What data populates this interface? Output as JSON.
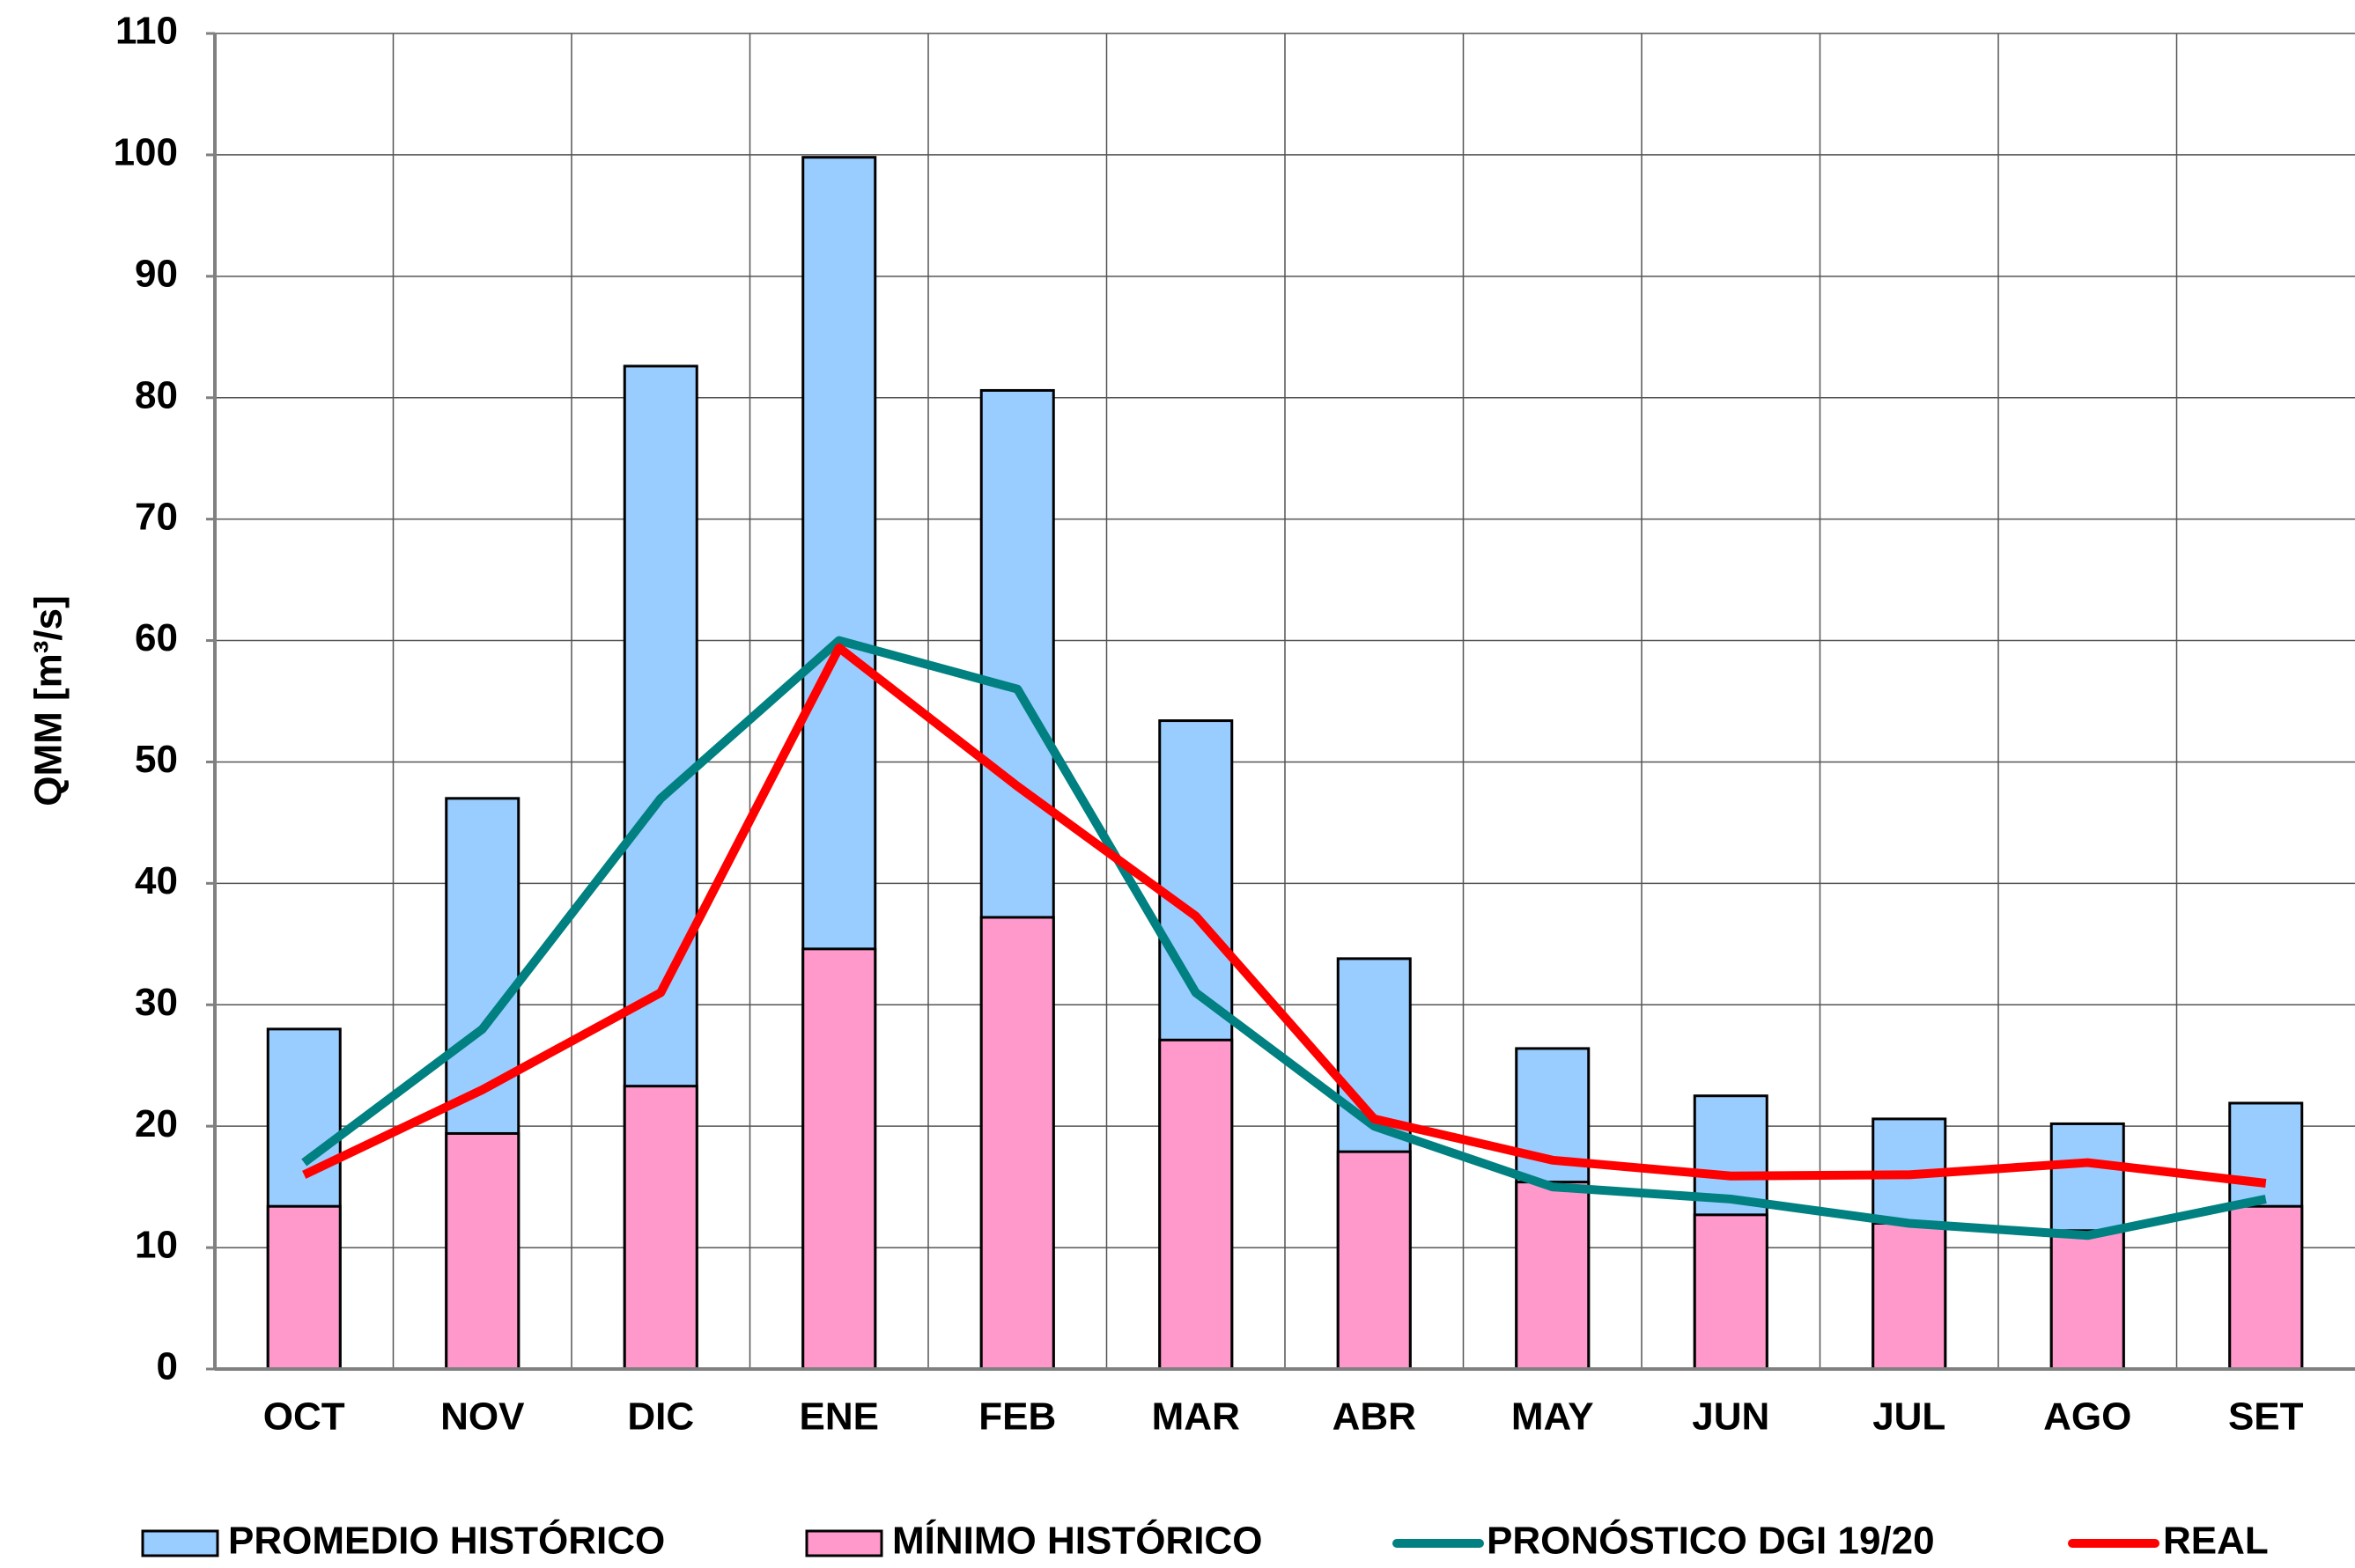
{
  "chart_data": {
    "type": "bar-line",
    "y_label": "QMM [m³/s]",
    "categories": [
      "OCT",
      "NOV",
      "DIC",
      "ENE",
      "FEB",
      "MAR",
      "ABR",
      "MAY",
      "JUN",
      "JUL",
      "AGO",
      "SET"
    ],
    "series": [
      {
        "name": "PROMEDIO HISTÓRICO",
        "kind": "bar",
        "color": "#99ccff",
        "values": [
          28,
          47,
          82.6,
          99.8,
          80.6,
          53.4,
          33.8,
          26.4,
          22.5,
          20.6,
          20.2,
          21.9
        ]
      },
      {
        "name": "MÍNIMO HISTÓRICO",
        "kind": "bar",
        "color": "#ff99cc",
        "values": [
          13.4,
          19.4,
          23.3,
          34.6,
          37.2,
          27.1,
          17.9,
          15.4,
          12.7,
          12,
          11.4,
          13.4
        ]
      },
      {
        "name": "PRONÓSTICO DGI 19/20",
        "kind": "line",
        "color": "#008080",
        "values": [
          17,
          28,
          47,
          60,
          56,
          31,
          20,
          15,
          14,
          12,
          11,
          14
        ]
      },
      {
        "name": "REAL",
        "kind": "line",
        "color": "#ff0000",
        "values": [
          16,
          23,
          31,
          59.4,
          48,
          37.3,
          20.6,
          17.2,
          15.9,
          16,
          17,
          15.3
        ]
      }
    ],
    "ylim": [
      0,
      110
    ],
    "yticks": [
      0,
      10,
      20,
      30,
      40,
      50,
      60,
      70,
      80,
      90,
      100,
      110
    ],
    "grid": true,
    "legend": "bottom"
  }
}
